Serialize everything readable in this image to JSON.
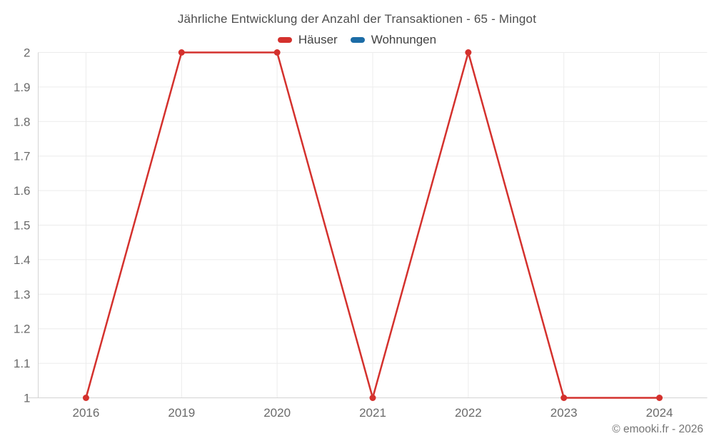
{
  "title": "Jährliche Entwicklung der Anzahl der Transaktionen - 65 - Mingot",
  "legend": [
    {
      "label": "Häuser",
      "color": "#d4312d",
      "name": "haeuser"
    },
    {
      "label": "Wohnungen",
      "color": "#1c6ca6",
      "name": "wohnungen"
    }
  ],
  "copyright": "© emooki.fr - 2026",
  "colors": {
    "grid": "#ececec",
    "axis": "#d4d4d4",
    "tick_text": "#6a6a6a",
    "title_text": "#4d4d4d"
  },
  "chart_data": {
    "type": "line",
    "title": "Jährliche Entwicklung der Anzahl der Transaktionen - 65 - Mingot",
    "categories": [
      "2016",
      "2019",
      "2020",
      "2021",
      "2022",
      "2023",
      "2024"
    ],
    "series": [
      {
        "name": "Häuser",
        "color": "#d4312d",
        "values": [
          1,
          2,
          2,
          1,
          2,
          1,
          1
        ]
      },
      {
        "name": "Wohnungen",
        "color": "#1c6ca6",
        "values": []
      }
    ],
    "xlabel": "",
    "ylabel": "",
    "ylim": [
      1,
      2
    ],
    "yticks": [
      "1",
      "1.1",
      "1.2",
      "1.3",
      "1.4",
      "1.5",
      "1.6",
      "1.7",
      "1.8",
      "1.9",
      "2"
    ],
    "grid": true,
    "legend_position": "top",
    "marker_radius": 4.5,
    "line_width": 2.5
  }
}
